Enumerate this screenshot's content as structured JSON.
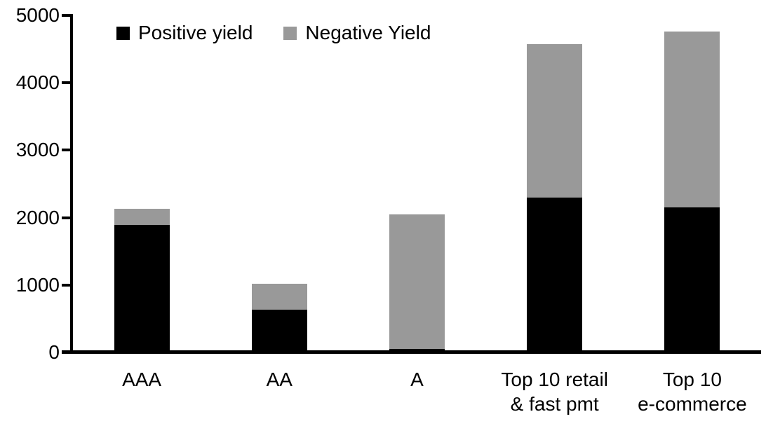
{
  "chart_data": {
    "type": "bar",
    "subtype": "stacked",
    "title": "",
    "xlabel": "",
    "ylabel": "",
    "categories": [
      "AAA",
      "AA",
      "A",
      "Top 10 retail\n& fast pmt",
      "Top 10\ne-commerce"
    ],
    "series": [
      {
        "name": "Positive yield",
        "color": "#000000",
        "values": [
          1890,
          630,
          50,
          2300,
          2150
        ]
      },
      {
        "name": "Negative Yield",
        "color": "#999999",
        "values": [
          240,
          390,
          2000,
          2270,
          2610
        ]
      }
    ],
    "totals": [
      2130,
      1020,
      2050,
      4570,
      4760
    ],
    "ylim": [
      0,
      5000
    ],
    "yticks": [
      0,
      1000,
      2000,
      3000,
      4000,
      5000
    ],
    "grid": false,
    "legend_position": "top-inside-left"
  },
  "colors": {
    "axis": "#000000",
    "background": "#ffffff",
    "text": "#000000",
    "positive_series": "#000000",
    "negative_series": "#999999"
  }
}
